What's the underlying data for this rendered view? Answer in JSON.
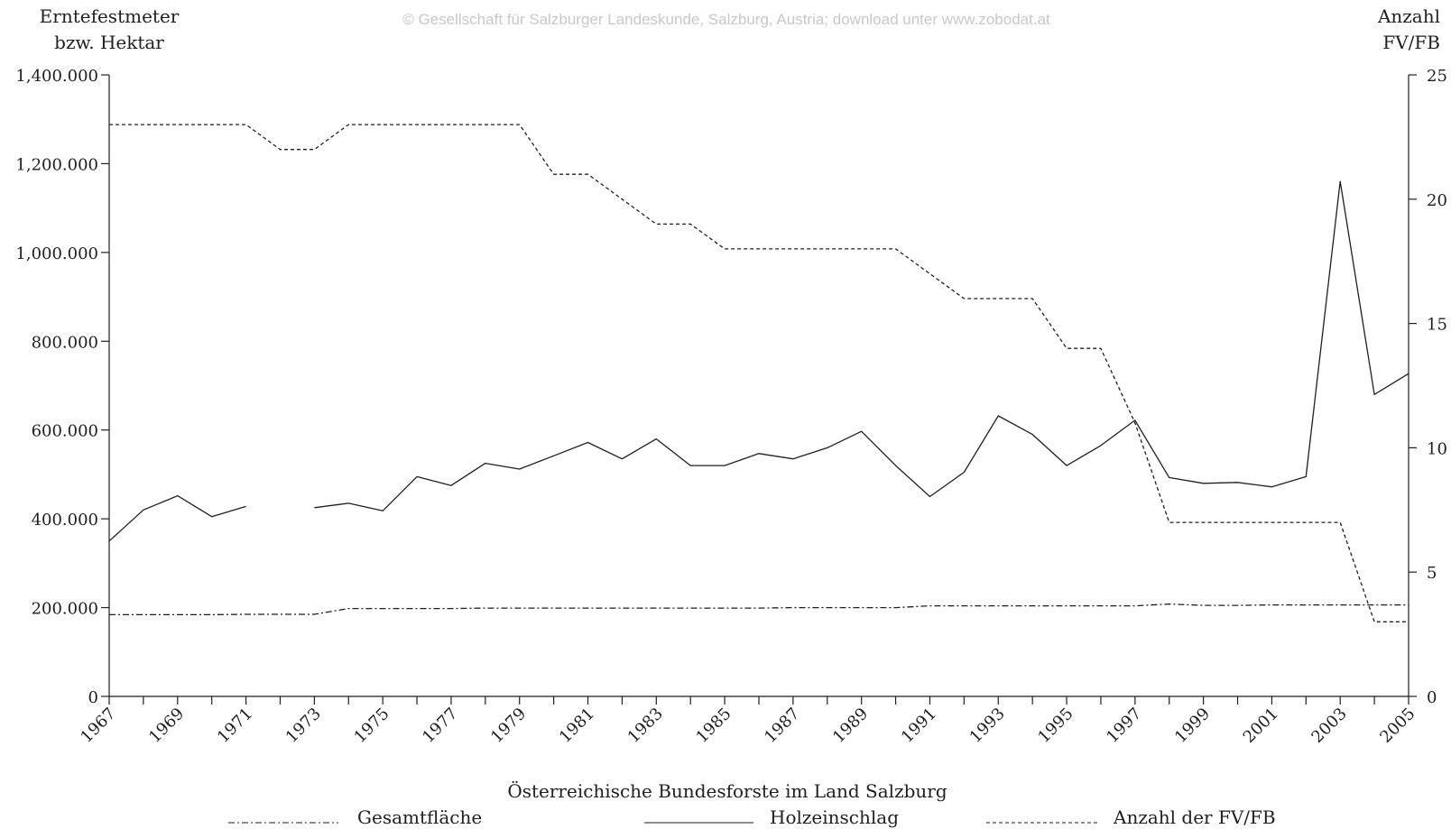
{
  "watermark": "© Gesellschaft für Salzburger Landeskunde, Salzburg, Austria; download unter www.zobodat.at",
  "chart_data": {
    "type": "line",
    "title": "Österreichische Bundesforste im Land Salzburg",
    "ylabel_left_line1": "Erntefestmeter",
    "ylabel_left_line2": "bzw. Hektar",
    "ylabel_right_line1": "Anzahl",
    "ylabel_right_line2": "FV/FB",
    "ylim_left": [
      0,
      1400000
    ],
    "ylim_right": [
      0,
      25
    ],
    "xlim": [
      1967,
      2005
    ],
    "left_ticks": [
      "0",
      "200.000",
      "400.000",
      "600.000",
      "800.000",
      "1,000.000",
      "1,200.000",
      "1,400.000"
    ],
    "right_ticks": [
      "0",
      "5",
      "10",
      "15",
      "20",
      "25"
    ],
    "x_tick_labels": [
      "1967",
      "1969",
      "1971",
      "1973",
      "1975",
      "1977",
      "1979",
      "1981",
      "1983",
      "1985",
      "1987",
      "1989",
      "1991",
      "1993",
      "1995",
      "1997",
      "1999",
      "2001",
      "2003",
      "2005"
    ],
    "x": [
      1967,
      1968,
      1969,
      1970,
      1971,
      1972,
      1973,
      1974,
      1975,
      1976,
      1977,
      1978,
      1979,
      1980,
      1981,
      1982,
      1983,
      1984,
      1985,
      1986,
      1987,
      1988,
      1989,
      1990,
      1991,
      1992,
      1993,
      1994,
      1995,
      1996,
      1997,
      1998,
      1999,
      2000,
      2001,
      2002,
      2003,
      2004,
      2005
    ],
    "series": [
      {
        "name": "Gesamtfläche",
        "axis": "left",
        "style": "dashdot",
        "values": [
          184000,
          184000,
          184000,
          184000,
          185000,
          185000,
          185000,
          198000,
          198000,
          198000,
          198000,
          199000,
          199000,
          199000,
          199000,
          199000,
          199000,
          199000,
          199000,
          199000,
          200000,
          200000,
          200000,
          200000,
          204000,
          204000,
          204000,
          204000,
          204000,
          204000,
          204000,
          208000,
          205000,
          205000,
          206000,
          206000,
          206000,
          206000,
          206000
        ]
      },
      {
        "name": "Holzeinschlag",
        "axis": "left",
        "style": "solid",
        "values": [
          350000,
          420000,
          452000,
          405000,
          428000,
          null,
          425000,
          435000,
          418000,
          495000,
          475000,
          525000,
          512000,
          542000,
          572000,
          535000,
          580000,
          520000,
          520000,
          547000,
          535000,
          560000,
          597000,
          520000,
          450000,
          505000,
          632000,
          590000,
          520000,
          565000,
          622000,
          493000,
          480000,
          482000,
          472000,
          495000,
          1160000,
          680000,
          727000
        ]
      },
      {
        "name": "Anzahl der FV/FB",
        "axis": "right",
        "style": "dashed",
        "values": [
          23,
          23,
          23,
          23,
          23,
          22,
          22,
          23,
          23,
          23,
          23,
          23,
          23,
          21,
          21,
          20,
          19,
          19,
          18,
          18,
          18,
          18,
          18,
          18,
          17,
          16,
          16,
          16,
          14,
          14,
          11,
          7,
          7,
          7,
          7,
          7,
          7,
          3,
          3
        ]
      }
    ],
    "legend_position": "bottom",
    "grid": false
  }
}
